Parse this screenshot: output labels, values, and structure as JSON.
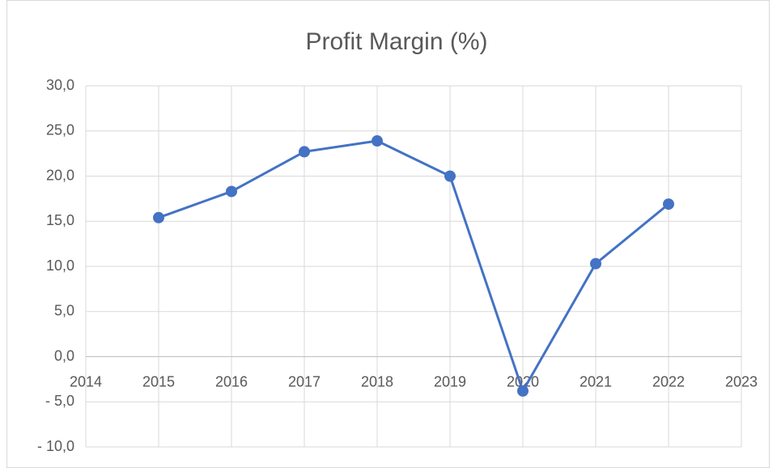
{
  "chart_data": {
    "type": "line",
    "title": "Profit Margin (%)",
    "x": [
      2015,
      2016,
      2017,
      2018,
      2019,
      2020,
      2021,
      2022
    ],
    "values": [
      15.4,
      18.3,
      22.7,
      23.9,
      20.0,
      -3.8,
      10.3,
      16.9
    ],
    "color": "#4472c4",
    "xlim": [
      2014,
      2023
    ],
    "xticks": [
      2014,
      2015,
      2016,
      2017,
      2018,
      2019,
      2020,
      2021,
      2022,
      2023
    ],
    "ylim": [
      -10,
      30
    ],
    "yticks": [
      {
        "value": -10,
        "label": "- 10,0"
      },
      {
        "value": -5,
        "label": "- 5,0"
      },
      {
        "value": 0,
        "label": "0,0"
      },
      {
        "value": 5,
        "label": "5,0"
      },
      {
        "value": 10,
        "label": "10,0"
      },
      {
        "value": 15,
        "label": "15,0"
      },
      {
        "value": 20,
        "label": "20,0"
      },
      {
        "value": 25,
        "label": "25,0"
      },
      {
        "value": 30,
        "label": "30,0"
      }
    ],
    "grid": true
  }
}
